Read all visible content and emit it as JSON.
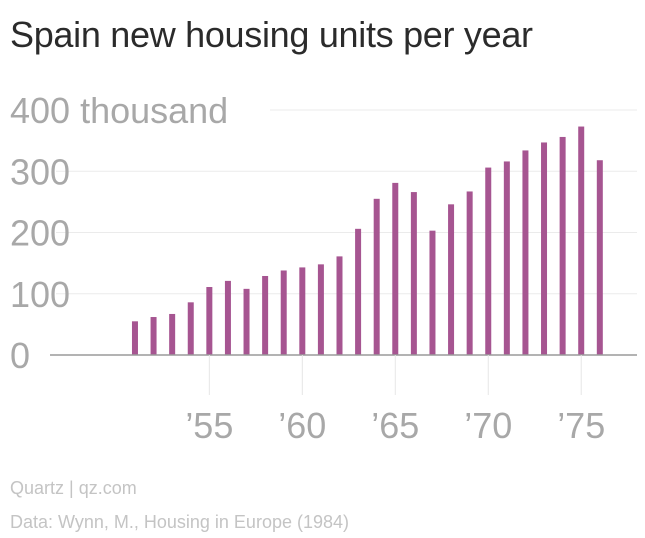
{
  "chart_data": {
    "type": "bar",
    "title": "Spain new housing units per year",
    "unit_label": "thousand",
    "xlabel": "",
    "ylabel": "",
    "ylim": [
      0,
      400
    ],
    "yticks": [
      0,
      100,
      200,
      300,
      400
    ],
    "ytick_labels": [
      "0",
      "100",
      "200",
      "300",
      "400 thousand"
    ],
    "xlim": [
      1946,
      1978
    ],
    "xticks": [
      1955,
      1960,
      1965,
      1970,
      1975
    ],
    "xtick_labels": [
      "’55",
      "’60",
      "’65",
      "’70",
      "’75"
    ],
    "grid": true,
    "color": "#a65591",
    "categories": [
      1951,
      1952,
      1953,
      1954,
      1955,
      1956,
      1957,
      1958,
      1959,
      1960,
      1961,
      1962,
      1963,
      1964,
      1965,
      1966,
      1967,
      1968,
      1969,
      1970,
      1971,
      1972,
      1973,
      1974,
      1975,
      1976
    ],
    "values": [
      55,
      62,
      67,
      86,
      111,
      121,
      108,
      129,
      138,
      143,
      148,
      161,
      206,
      255,
      281,
      266,
      203,
      246,
      267,
      306,
      316,
      334,
      347,
      356,
      373,
      318
    ]
  },
  "footer": {
    "source": "Quartz | qz.com",
    "data_credit": "Data: Wynn, M., Housing in Europe (1984)"
  }
}
